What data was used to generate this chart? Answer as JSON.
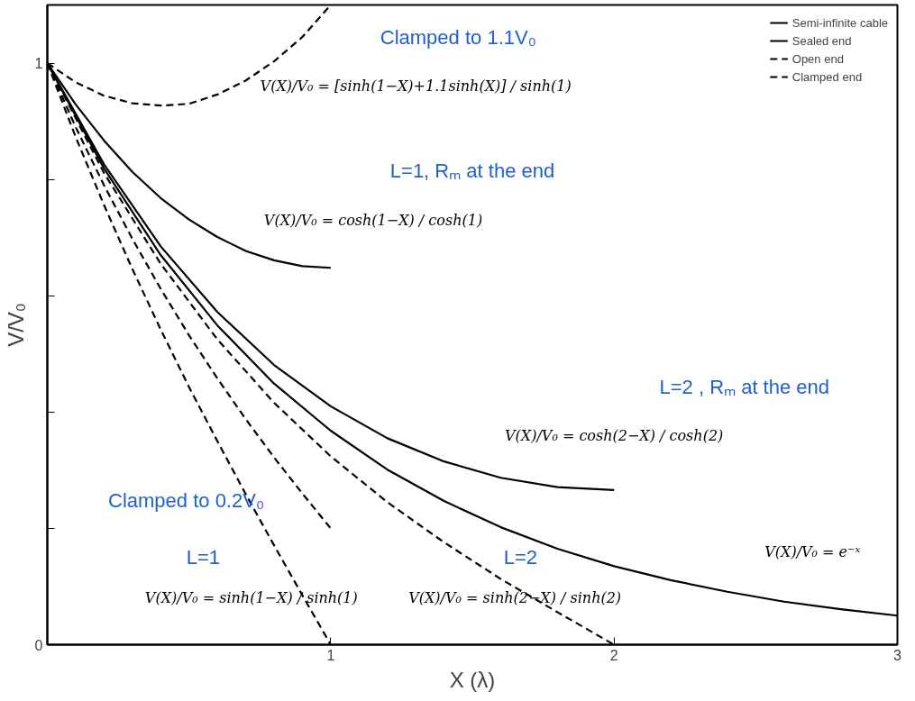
{
  "chart_data": {
    "type": "line",
    "xlabel": "X (λ)",
    "ylabel": "V/V₀",
    "xlim": [
      0,
      3
    ],
    "ylim": [
      0,
      1.1
    ],
    "xticks": [
      1,
      2,
      3
    ],
    "yticks": [
      0,
      {
        "value": 0.2,
        "label": null
      },
      {
        "value": 0.4,
        "label": null
      },
      {
        "value": 0.6,
        "label": null
      },
      {
        "value": 0.8,
        "label": null
      },
      1
    ],
    "grid": false,
    "legend": "top right",
    "marker": "none",
    "series": [
      {
        "name": "Semi-infinite cable",
        "color": "#000000",
        "line_style": "solid",
        "x": [
          0,
          0.2,
          0.4,
          0.6,
          0.8,
          1.0,
          1.2,
          1.4,
          1.6,
          1.8,
          2.0,
          2.2,
          2.4,
          2.6,
          2.8,
          3.0
        ],
        "values": [
          1,
          0.819,
          0.67,
          0.549,
          0.449,
          0.368,
          0.301,
          0.247,
          0.202,
          0.165,
          0.135,
          0.111,
          0.091,
          0.074,
          0.061,
          0.05
        ]
      },
      {
        "name": "Sealed end",
        "color": "#000000",
        "line_style": "solid",
        "x": [
          0,
          0.1,
          0.2,
          0.3,
          0.4,
          0.5,
          0.6,
          0.7,
          0.8,
          0.9,
          1.0
        ],
        "values": [
          1,
          0.929,
          0.867,
          0.813,
          0.768,
          0.731,
          0.701,
          0.677,
          0.661,
          0.651,
          0.648
        ]
      },
      {
        "color": "#000000",
        "line_style": "solid",
        "x": [
          0,
          0.2,
          0.4,
          0.6,
          0.8,
          1.0,
          1.2,
          1.4,
          1.6,
          1.8,
          2.0
        ],
        "values": [
          1,
          0.826,
          0.685,
          0.572,
          0.481,
          0.41,
          0.355,
          0.315,
          0.287,
          0.271,
          0.266
        ]
      },
      {
        "name": "Open end",
        "color": "#000000",
        "line_style": "dashed",
        "x": [
          0,
          0.1,
          0.2,
          0.3,
          0.4,
          0.5,
          0.6,
          0.7,
          0.8,
          0.9,
          1.0
        ],
        "values": [
          1,
          0.873,
          0.756,
          0.646,
          0.542,
          0.443,
          0.35,
          0.259,
          0.171,
          0.085,
          0
        ]
      },
      {
        "color": "#000000",
        "line_style": "dashed",
        "x": [
          0,
          0.2,
          0.4,
          0.6,
          0.8,
          1.0,
          1.2,
          1.4,
          1.6,
          1.8,
          2.0
        ],
        "values": [
          1,
          0.811,
          0.655,
          0.525,
          0.416,
          0.324,
          0.245,
          0.176,
          0.113,
          0.056,
          0
        ]
      },
      {
        "name": "Clamped end",
        "color": "#000000",
        "line_style": "dashed",
        "x": [
          0,
          0.1,
          0.2,
          0.3,
          0.4,
          0.5,
          0.6,
          0.7,
          0.8,
          0.9,
          1.0
        ],
        "values": [
          1,
          0.967,
          0.944,
          0.931,
          0.927,
          0.93,
          0.946,
          0.97,
          1.003,
          1.045,
          1.1
        ]
      },
      {
        "color": "#000000",
        "line_style": "dashed",
        "x": [
          0,
          0.1,
          0.2,
          0.3,
          0.4,
          0.5,
          0.6,
          0.7,
          0.8,
          0.9,
          1.0
        ],
        "values": [
          1,
          0.89,
          0.79,
          0.698,
          0.612,
          0.532,
          0.458,
          0.388,
          0.322,
          0.26,
          0.2
        ]
      }
    ],
    "annotations": [
      "Clamped to 1.1V₀",
      "V(X)/V₀ = [sinh(1−X)+1.1sinh(X)] / sinh(1)",
      "L=1, Rₘ at the end",
      "V(X)/V₀ = cosh(1−X) / cosh(1)",
      "L=2 , Rₘ at the end",
      "V(X)/V₀ = cosh(2−X) / cosh(2)",
      "Clamped to 0.2V₀",
      "V(X)/V₀ = e⁻ˣ",
      "L=1",
      "V(X)/V₀ = sinh(1−X) / sinh(1)",
      "L=2",
      "V(X)/V₀ = sinh(2−X) / sinh(2)"
    ]
  }
}
